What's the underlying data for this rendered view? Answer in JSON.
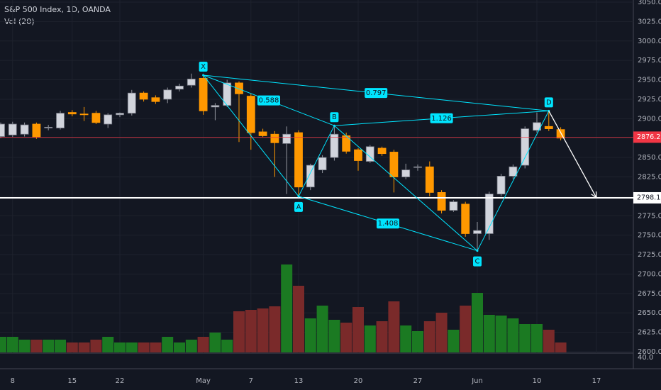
{
  "chart_data": {
    "type": "candlestick",
    "title": "S&P 500 Index, 1D, OANDA",
    "indicator": "Vol (20)",
    "categories": [
      null,
      "8",
      null,
      null,
      null,
      null,
      "15",
      null,
      null,
      null,
      "22",
      null,
      null,
      null,
      null,
      null,
      null,
      "May",
      null,
      null,
      null,
      "7",
      null,
      null,
      null,
      "13",
      null,
      null,
      null,
      null,
      "20",
      null,
      null,
      null,
      null,
      "27",
      null,
      null,
      null,
      null,
      "Jun",
      null,
      null,
      null,
      null,
      "10",
      null,
      null,
      null,
      null,
      "17"
    ],
    "open": [
      2877,
      2879,
      2880,
      2893,
      2888,
      2888,
      2908,
      2906,
      2907,
      2893,
      2905,
      2907,
      2933,
      2927,
      2925,
      2938,
      2943,
      2952,
      2915,
      2917,
      2946,
      2929,
      2883,
      2880,
      2868,
      2882,
      2812,
      2834,
      2850,
      2878,
      2860,
      2845,
      2862,
      2857,
      2825,
      2838,
      2838,
      2805,
      2782,
      2790,
      2752,
      2752,
      2803,
      2826,
      2840,
      2885,
      2890,
      2886,
      null,
      null,
      null
    ],
    "high": [
      2895,
      2896,
      2895,
      2895,
      2892,
      2910,
      2911,
      2915,
      2910,
      2907,
      2908,
      2937,
      2935,
      2930,
      2940,
      2945,
      2958,
      2955,
      2920,
      2950,
      2948,
      2932,
      2887,
      2884,
      2890,
      2885,
      2842,
      2853,
      2891,
      2882,
      2862,
      2866,
      2864,
      2860,
      2842,
      2841,
      2845,
      2808,
      2795,
      2793,
      2767,
      2806,
      2829,
      2841,
      2890,
      2908,
      2910,
      2889,
      null,
      null,
      null
    ],
    "low": [
      2875,
      2876,
      2877,
      2874,
      2885,
      2886,
      2903,
      2897,
      2893,
      2888,
      2902,
      2904,
      2922,
      2919,
      2920,
      2935,
      2940,
      2905,
      2898,
      2915,
      2870,
      2860,
      2876,
      2825,
      2803,
      2800,
      2808,
      2830,
      2846,
      2855,
      2833,
      2843,
      2852,
      2805,
      2822,
      2833,
      2800,
      2778,
      2780,
      2748,
      2730,
      2744,
      2800,
      2822,
      2836,
      2882,
      2884,
      2872,
      null,
      null,
      null
    ],
    "close": [
      2893,
      2893,
      2892,
      2876,
      2889,
      2907,
      2906,
      2905,
      2895,
      2905,
      2907,
      2933,
      2925,
      2922,
      2937,
      2942,
      2951,
      2910,
      2917,
      2946,
      2932,
      2882,
      2878,
      2869,
      2880,
      2812,
      2840,
      2850,
      2880,
      2858,
      2846,
      2864,
      2855,
      2825,
      2834,
      2838,
      2805,
      2782,
      2793,
      2752,
      2756,
      2803,
      2826,
      2838,
      2887,
      2895,
      2887,
      2875,
      null,
      null,
      null
    ],
    "volume": [
      22,
      22,
      18,
      18,
      18,
      18,
      14,
      14,
      18,
      22,
      14,
      14,
      14,
      14,
      22,
      14,
      18,
      22,
      28,
      18,
      58,
      60,
      62,
      65,
      124,
      94,
      48,
      66,
      46,
      42,
      64,
      38,
      44,
      72,
      38,
      30,
      44,
      56,
      32,
      66,
      84,
      53,
      52,
      48,
      40,
      40,
      32,
      14,
      null,
      null,
      null
    ],
    "volume_lim": [
      0,
      130
    ],
    "volume_scale_label": "40.0",
    "ylim": [
      2600,
      3050
    ],
    "yticks": [
      {
        "value": 2600,
        "label": "2600.0"
      },
      {
        "value": 2625,
        "label": "2625.0"
      },
      {
        "value": 2650,
        "label": "2650.0"
      },
      {
        "value": 2675,
        "label": "2675.0"
      },
      {
        "value": 2700,
        "label": "2700.0"
      },
      {
        "value": 2725,
        "label": "2725.0"
      },
      {
        "value": 2750,
        "label": "2750.0"
      },
      {
        "value": 2775,
        "label": "2775.0"
      },
      {
        "value": 2800,
        "label": "2800.0"
      },
      {
        "value": 2825,
        "label": "2825.0"
      },
      {
        "value": 2850,
        "label": "2850.0"
      },
      {
        "value": 2875,
        "label": "2875.0"
      },
      {
        "value": 2900,
        "label": "2900.0"
      },
      {
        "value": 2925,
        "label": "2925.0"
      },
      {
        "value": 2950,
        "label": "2950.0"
      },
      {
        "value": 2975,
        "label": "2975.0"
      },
      {
        "value": 3000,
        "label": "3000.0"
      },
      {
        "value": 3025,
        "label": "3025.0"
      },
      {
        "value": 3050,
        "label": "3050.0"
      }
    ],
    "grid": true,
    "up_color": "#d1d4dc",
    "down_color": "#ff9800",
    "vol_up_color": "#1b7a22",
    "vol_down_color": "#7a2a2a",
    "price_lines": [
      {
        "value": 2876.2,
        "label": "2876.2",
        "color": "#f23645"
      },
      {
        "value": 2798.1,
        "label": "2798.1",
        "color": "#ffffff"
      }
    ],
    "pattern": {
      "color": "#00e5ff",
      "points": [
        {
          "label": "X",
          "x": 17,
          "y": 2956
        },
        {
          "label": "A",
          "x": 25,
          "y": 2800
        },
        {
          "label": "B",
          "x": 28,
          "y": 2891
        },
        {
          "label": "C",
          "x": 40,
          "y": 2730
        },
        {
          "label": "D",
          "x": 46,
          "y": 2910
        }
      ],
      "ratios": [
        {
          "label": "0.588",
          "from": 0,
          "to": 2
        },
        {
          "label": "0.797",
          "from": 0,
          "to": 4
        },
        {
          "label": "1.126",
          "from": 2,
          "to": 4
        },
        {
          "label": "1.408",
          "from": 1,
          "to": 3
        }
      ]
    }
  }
}
